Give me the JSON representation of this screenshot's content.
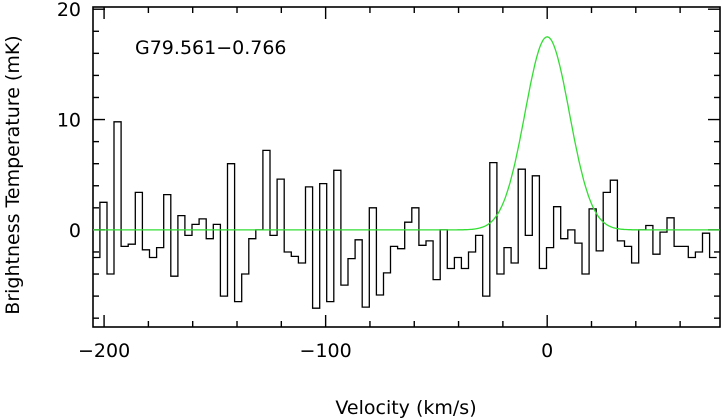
{
  "chart_data": {
    "type": "line",
    "title": "",
    "annotation": "G79.561−0.766",
    "xlabel": "Velocity (km/s)",
    "ylabel": "Brightness Temperature (mK)",
    "xlim": [
      -205,
      78
    ],
    "ylim": [
      -8.8,
      20.2
    ],
    "x_ticks": [
      -200,
      -100,
      0
    ],
    "x_tick_labels": [
      "−200",
      "−100",
      "0"
    ],
    "x_minor_step": 20,
    "y_ticks": [
      0,
      10,
      20
    ],
    "y_tick_labels": [
      "0",
      "10",
      "20"
    ],
    "y_minor_step": 2,
    "grid": false,
    "series": [
      {
        "style": "step",
        "color": "#000000",
        "bin_width": 3.2,
        "x": [
          -203.5,
          -200.3,
          -197.1,
          -193.9,
          -190.7,
          -187.5,
          -184.3,
          -181.1,
          -177.9,
          -174.7,
          -171.5,
          -168.3,
          -165.1,
          -161.9,
          -158.7,
          -155.5,
          -152.3,
          -149.1,
          -145.9,
          -142.7,
          -139.5,
          -136.3,
          -133.1,
          -129.9,
          -126.7,
          -123.5,
          -120.3,
          -117.1,
          -113.9,
          -110.7,
          -107.5,
          -104.3,
          -101.1,
          -97.9,
          -94.7,
          -91.5,
          -88.3,
          -85.1,
          -81.9,
          -78.7,
          -75.5,
          -72.3,
          -69.1,
          -65.9,
          -62.7,
          -59.5,
          -56.3,
          -53.1,
          -49.9,
          -46.7,
          -43.5,
          -40.3,
          -37.1,
          -33.9,
          -30.7,
          -27.5,
          -24.3,
          -21.1,
          -17.9,
          -14.7,
          -11.5,
          -8.3,
          -5.1,
          -1.9,
          1.3,
          4.5,
          7.7,
          10.9,
          14.1,
          17.3,
          20.5,
          23.7,
          26.9,
          30.1,
          33.3,
          36.5,
          39.7,
          42.9,
          46.1,
          49.3,
          52.5,
          55.7,
          58.9,
          62.1,
          65.3,
          68.5,
          71.7,
          74.9
        ],
        "y": [
          -2.5,
          2.5,
          -4,
          9.8,
          -1.5,
          -1.3,
          3.4,
          -1.8,
          -2.5,
          -1.6,
          3.2,
          -4.2,
          1.3,
          -0.5,
          0.5,
          1,
          -0.8,
          0.5,
          -6,
          6,
          -6.5,
          -4,
          -0.8,
          0,
          7.2,
          -0.5,
          4.6,
          -2,
          -2.4,
          -3,
          3.9,
          -7.1,
          4.2,
          -6.5,
          5.4,
          -5,
          -2.6,
          -0.9,
          -7,
          2,
          -5.9,
          -3.9,
          -1.5,
          -1.7,
          0.7,
          2,
          -1.4,
          -1,
          -4.5,
          0,
          -3.5,
          -2.5,
          -3.5,
          -2,
          -0.5,
          -6,
          6.1,
          -4,
          -1.6,
          -3,
          5.5,
          -0.5,
          4.9,
          -3.5,
          -1.6,
          2.1,
          -0.8,
          0,
          -1.2,
          -4,
          1.9,
          -1.9,
          3.4,
          4.5,
          -1,
          -1.5,
          -3,
          0,
          0.4,
          -2.2,
          -0.2,
          1.1,
          -1.5,
          -1.5,
          -2.5,
          -2,
          -0.3,
          -2.5
        ]
      },
      {
        "style": "gaussian_fit",
        "color": "#33dd33",
        "amplitude": 17.5,
        "center": 0,
        "sigma": 10,
        "baseline": 0
      }
    ]
  }
}
